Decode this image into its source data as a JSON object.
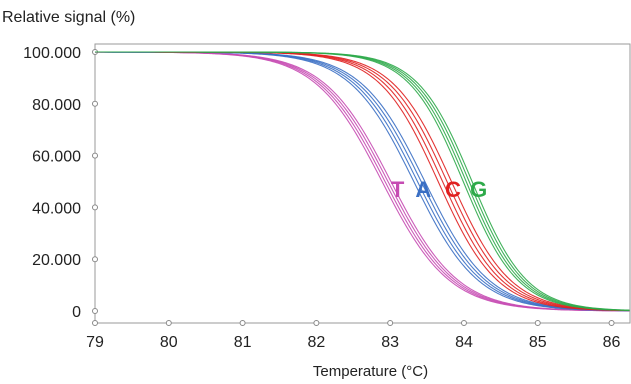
{
  "chart_data": {
    "type": "line",
    "ylabel": "Relative signal (%)",
    "xlabel": "Temperature (°C)",
    "xlim": [
      79,
      86.25
    ],
    "ylim": [
      0,
      100
    ],
    "xticks": [
      79,
      80,
      81,
      82,
      83,
      84,
      85,
      86
    ],
    "yticks": [
      0,
      20,
      40,
      60,
      80,
      100
    ],
    "ytick_labels": [
      "0",
      "20.000",
      "40.000",
      "60.000",
      "80.000",
      "100.000"
    ],
    "grid": false,
    "annotations": [
      {
        "text": "T",
        "x": 83.1,
        "y": 44,
        "color": "#c64bb3"
      },
      {
        "text": "A",
        "x": 83.45,
        "y": 44,
        "color": "#3a6fc4"
      },
      {
        "text": "C",
        "x": 83.85,
        "y": 44,
        "color": "#e02020"
      },
      {
        "text": "G",
        "x": 84.2,
        "y": 44,
        "color": "#2eaa4a"
      }
    ],
    "series": [
      {
        "name": "T",
        "color": "#c64bb3",
        "midpoint": 82.95,
        "slope": 2.2,
        "replicate_offsets": [
          -0.06,
          -0.02,
          0.02,
          0.06
        ]
      },
      {
        "name": "A",
        "color": "#3a6fc4",
        "midpoint": 83.4,
        "slope": 2.3,
        "replicate_offsets": [
          -0.08,
          -0.03,
          0.02,
          0.07
        ]
      },
      {
        "name": "C",
        "color": "#e02020",
        "midpoint": 83.75,
        "slope": 2.5,
        "replicate_offsets": [
          -0.1,
          -0.04,
          0.02,
          0.08
        ]
      },
      {
        "name": "G",
        "color": "#2eaa4a",
        "midpoint": 84.05,
        "slope": 2.7,
        "replicate_offsets": [
          -0.06,
          -0.02,
          0.02,
          0.06
        ]
      }
    ]
  }
}
